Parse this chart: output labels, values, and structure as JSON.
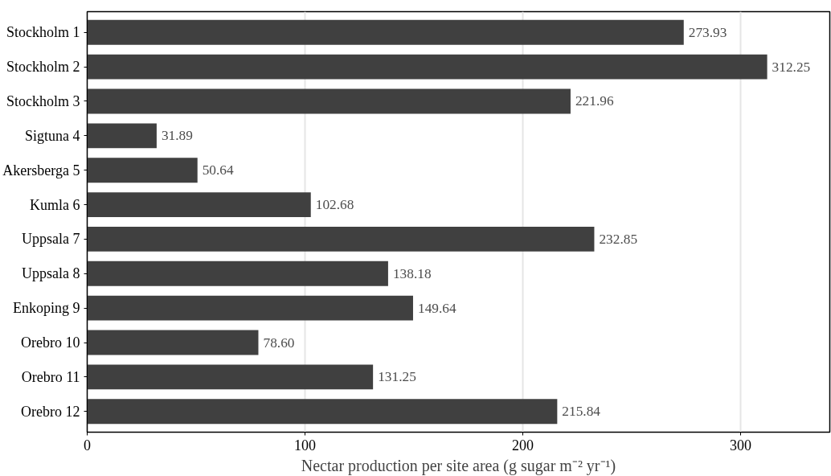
{
  "chart_data": {
    "type": "bar",
    "orientation": "horizontal",
    "xlabel": "Nectar production per site area (g sugar m⁻² yr⁻¹)",
    "categories": [
      "Stockholm 1",
      "Stockholm 2",
      "Stockholm 3",
      "Sigtuna 4",
      "Akersberga 5",
      "Kumla 6",
      "Uppsala 7",
      "Uppsala 8",
      "Enkoping 9",
      "Orebro 10",
      "Orebro 11",
      "Orebro 12"
    ],
    "values": [
      273.93,
      312.25,
      221.96,
      31.89,
      50.64,
      102.68,
      232.85,
      138.18,
      149.64,
      78.6,
      131.25,
      215.84
    ],
    "value_labels": [
      "273.93",
      "312.25",
      "221.96",
      "31.89",
      "50.64",
      "102.68",
      "232.85",
      "138.18",
      "149.64",
      "78.60",
      "131.25",
      "215.84"
    ],
    "color": "#404040",
    "xlim": [
      0,
      341
    ],
    "xticks": [
      0,
      100,
      200,
      300
    ],
    "grid": "x"
  }
}
